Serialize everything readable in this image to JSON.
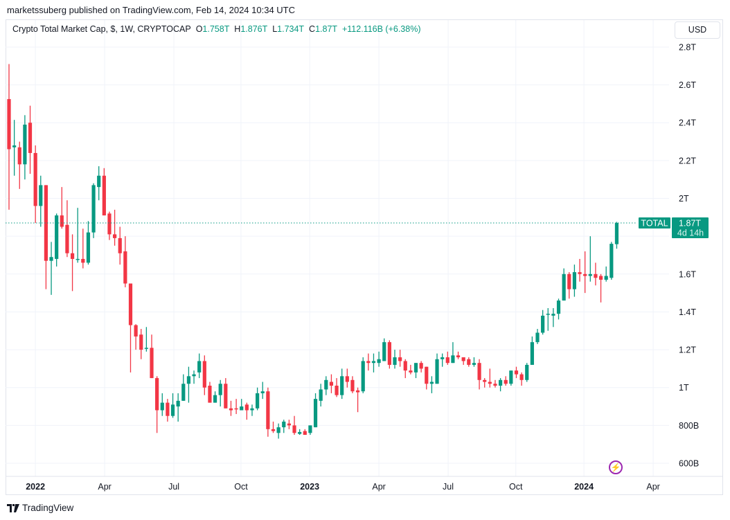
{
  "header": {
    "published": "marketssuberg published on TradingView.com, Feb 14, 2024 10:34 UTC"
  },
  "legend": {
    "symbol": "Crypto Total Market Cap, $, 1W, CRYPTOCAP",
    "o_label": "O",
    "o": "1.758T",
    "h_label": "H",
    "h": "1.876T",
    "l_label": "L",
    "l": "1.734T",
    "c_label": "C",
    "c": "1.87T",
    "change": "+112.116B (+6.38%)"
  },
  "currency_button": "USD",
  "footer": {
    "brand": "TradingView",
    "logo_icon": "tradingview-logo-icon"
  },
  "colors": {
    "up": "#089981",
    "down": "#f23645",
    "grid": "#f0f3fa",
    "text": "#131722",
    "event": "#9c27b0"
  },
  "events": [
    {
      "icon": "lightning-icon",
      "glyph": "⚡"
    }
  ],
  "chart_data": {
    "type": "candlestick",
    "title": "Crypto Total Market Cap, $, 1W, CRYPTOCAP",
    "unit": "T USD",
    "ylim": [
      0.5,
      2.95
    ],
    "grid": true,
    "y_ticks": [
      {
        "v": 0.6,
        "label": "600B"
      },
      {
        "v": 0.8,
        "label": "800B"
      },
      {
        "v": 1.0,
        "label": "1T"
      },
      {
        "v": 1.2,
        "label": "1.2T"
      },
      {
        "v": 1.4,
        "label": "1.4T"
      },
      {
        "v": 1.6,
        "label": "1.6T"
      },
      {
        "v": 1.8,
        "label": ""
      },
      {
        "v": 2.0,
        "label": "2T"
      },
      {
        "v": 2.2,
        "label": "2.2T"
      },
      {
        "v": 2.4,
        "label": "2.4T"
      },
      {
        "v": 2.6,
        "label": "2.6T"
      },
      {
        "v": 2.8,
        "label": "2.8T"
      }
    ],
    "x_ticks": [
      {
        "week": 5,
        "label": "2022",
        "bold": true
      },
      {
        "week": 18.1,
        "label": "Apr"
      },
      {
        "week": 31.2,
        "label": "Jul"
      },
      {
        "week": 43.9,
        "label": "Oct"
      },
      {
        "week": 56.9,
        "label": "2023",
        "bold": true
      },
      {
        "week": 70,
        "label": "Apr"
      },
      {
        "week": 83.1,
        "label": "Jul"
      },
      {
        "week": 95.9,
        "label": "Oct"
      },
      {
        "week": 108.8,
        "label": "2024",
        "bold": true
      },
      {
        "week": 121.9,
        "label": "Apr"
      }
    ],
    "last_price": {
      "series_label": "TOTAL",
      "value": 1.87,
      "value_label": "1.87T",
      "countdown": "4d 14h"
    },
    "ohlc": [
      [
        2.525,
        2.71,
        1.94,
        2.26
      ],
      [
        2.27,
        2.415,
        2.12,
        2.28
      ],
      [
        2.27,
        2.3,
        2.05,
        2.18
      ],
      [
        2.18,
        2.44,
        2.1,
        2.39
      ],
      [
        2.4,
        2.49,
        2.13,
        2.24
      ],
      [
        2.24,
        2.28,
        1.87,
        1.96
      ],
      [
        1.96,
        2.12,
        1.85,
        2.07
      ],
      [
        2.07,
        2.07,
        1.52,
        1.67
      ],
      [
        1.67,
        1.77,
        1.49,
        1.69
      ],
      [
        1.68,
        1.92,
        1.64,
        1.91
      ],
      [
        1.91,
        2.06,
        1.84,
        1.85
      ],
      [
        1.86,
        1.99,
        1.69,
        1.71
      ],
      [
        1.71,
        1.81,
        1.51,
        1.68
      ],
      [
        1.675,
        1.95,
        1.66,
        1.68
      ],
      [
        1.68,
        1.84,
        1.63,
        1.66
      ],
      [
        1.66,
        1.88,
        1.65,
        1.82
      ],
      [
        1.82,
        2.08,
        1.79,
        2.07
      ],
      [
        2.06,
        2.17,
        1.99,
        2.12
      ],
      [
        2.12,
        2.16,
        1.91,
        1.91
      ],
      [
        1.92,
        1.93,
        1.78,
        1.81
      ],
      [
        1.81,
        1.94,
        1.75,
        1.79
      ],
      [
        1.79,
        1.85,
        1.65,
        1.71
      ],
      [
        1.72,
        1.8,
        1.53,
        1.55
      ],
      [
        1.55,
        1.55,
        1.08,
        1.33
      ],
      [
        1.33,
        1.335,
        1.2,
        1.27
      ],
      [
        1.28,
        1.31,
        1.15,
        1.2
      ],
      [
        1.205,
        1.32,
        1.19,
        1.21
      ],
      [
        1.21,
        1.28,
        1.05,
        1.05
      ],
      [
        1.05,
        1.06,
        0.76,
        0.88
      ],
      [
        0.88,
        0.97,
        0.85,
        0.92
      ],
      [
        0.92,
        0.94,
        0.82,
        0.85
      ],
      [
        0.85,
        0.97,
        0.84,
        0.91
      ],
      [
        0.9,
        0.97,
        0.82,
        0.93
      ],
      [
        0.93,
        1.07,
        0.93,
        1.02
      ],
      [
        1.02,
        1.11,
        0.92,
        1.06
      ],
      [
        1.06,
        1.09,
        1.02,
        1.07
      ],
      [
        1.08,
        1.18,
        1.05,
        1.14
      ],
      [
        1.14,
        1.17,
        0.96,
        1.0
      ],
      [
        1.01,
        1.03,
        0.92,
        0.92
      ],
      [
        0.92,
        0.98,
        0.92,
        0.96
      ],
      [
        0.96,
        1.04,
        0.9,
        1.02
      ],
      [
        1.02,
        1.05,
        0.89,
        0.89
      ],
      [
        0.89,
        0.93,
        0.85,
        0.88
      ],
      [
        0.89,
        0.94,
        0.86,
        0.885
      ],
      [
        0.88,
        0.94,
        0.88,
        0.9
      ],
      [
        0.91,
        0.92,
        0.83,
        0.88
      ],
      [
        0.88,
        0.91,
        0.85,
        0.89
      ],
      [
        0.89,
        1.0,
        0.88,
        0.97
      ],
      [
        0.97,
        1.03,
        0.94,
        0.98
      ],
      [
        0.98,
        1.0,
        0.74,
        0.78
      ],
      [
        0.78,
        0.82,
        0.76,
        0.77
      ],
      [
        0.76,
        0.81,
        0.73,
        0.79
      ],
      [
        0.79,
        0.83,
        0.76,
        0.82
      ],
      [
        0.81,
        0.83,
        0.78,
        0.8
      ],
      [
        0.8,
        0.85,
        0.75,
        0.76
      ],
      [
        0.755,
        0.78,
        0.75,
        0.765
      ],
      [
        0.77,
        0.78,
        0.75,
        0.75
      ],
      [
        0.76,
        0.8,
        0.75,
        0.8
      ],
      [
        0.79,
        0.97,
        0.79,
        0.94
      ],
      [
        0.93,
        1.02,
        0.9,
        0.99
      ],
      [
        0.99,
        1.06,
        0.96,
        1.04
      ],
      [
        1.03,
        1.07,
        0.97,
        1.01
      ],
      [
        1.01,
        1.05,
        0.95,
        0.96
      ],
      [
        0.96,
        1.1,
        0.94,
        1.06
      ],
      [
        1.06,
        1.1,
        1.0,
        1.03
      ],
      [
        1.04,
        1.06,
        0.97,
        0.98
      ],
      [
        0.985,
        1.0,
        0.87,
        0.975
      ],
      [
        0.98,
        1.16,
        0.97,
        1.14
      ],
      [
        1.14,
        1.18,
        1.09,
        1.13
      ],
      [
        1.13,
        1.18,
        1.08,
        1.14
      ],
      [
        1.13,
        1.19,
        1.11,
        1.15
      ],
      [
        1.14,
        1.26,
        1.14,
        1.24
      ],
      [
        1.24,
        1.25,
        1.1,
        1.12
      ],
      [
        1.12,
        1.2,
        1.1,
        1.16
      ],
      [
        1.16,
        1.2,
        1.11,
        1.14
      ],
      [
        1.14,
        1.15,
        1.05,
        1.09
      ],
      [
        1.09,
        1.12,
        1.07,
        1.08
      ],
      [
        1.08,
        1.13,
        1.05,
        1.13
      ],
      [
        1.13,
        1.14,
        1.08,
        1.1
      ],
      [
        1.11,
        1.11,
        0.99,
        1.02
      ],
      [
        1.02,
        1.06,
        0.97,
        1.03
      ],
      [
        1.02,
        1.18,
        1.02,
        1.15
      ],
      [
        1.15,
        1.18,
        1.11,
        1.16
      ],
      [
        1.16,
        1.19,
        1.12,
        1.13
      ],
      [
        1.13,
        1.24,
        1.13,
        1.17
      ],
      [
        1.17,
        1.19,
        1.15,
        1.16
      ],
      [
        1.16,
        1.16,
        1.12,
        1.14
      ],
      [
        1.15,
        1.16,
        1.11,
        1.12
      ],
      [
        1.12,
        1.16,
        1.11,
        1.13
      ],
      [
        1.13,
        1.15,
        0.99,
        1.04
      ],
      [
        1.04,
        1.05,
        1.0,
        1.03
      ],
      [
        1.03,
        1.1,
        1.0,
        1.02
      ],
      [
        1.02,
        1.04,
        1.0,
        1.01
      ],
      [
        1.01,
        1.05,
        0.98,
        1.04
      ],
      [
        1.04,
        1.06,
        1.01,
        1.02
      ],
      [
        1.02,
        1.09,
        1.01,
        1.09
      ],
      [
        1.09,
        1.11,
        1.05,
        1.07
      ],
      [
        1.07,
        1.08,
        1.01,
        1.04
      ],
      [
        1.04,
        1.13,
        1.03,
        1.12
      ],
      [
        1.12,
        1.27,
        1.12,
        1.24
      ],
      [
        1.24,
        1.31,
        1.23,
        1.29
      ],
      [
        1.29,
        1.41,
        1.28,
        1.38
      ],
      [
        1.385,
        1.42,
        1.3,
        1.39
      ],
      [
        1.38,
        1.42,
        1.32,
        1.39
      ],
      [
        1.39,
        1.47,
        1.36,
        1.46
      ],
      [
        1.46,
        1.63,
        1.46,
        1.6
      ],
      [
        1.6,
        1.61,
        1.47,
        1.52
      ],
      [
        1.52,
        1.65,
        1.48,
        1.61
      ],
      [
        1.61,
        1.68,
        1.56,
        1.6
      ],
      [
        1.6,
        1.72,
        1.5,
        1.59
      ],
      [
        1.59,
        1.8,
        1.56,
        1.6
      ],
      [
        1.6,
        1.66,
        1.54,
        1.58
      ],
      [
        1.59,
        1.6,
        1.45,
        1.57
      ],
      [
        1.57,
        1.64,
        1.56,
        1.59
      ],
      [
        1.58,
        1.77,
        1.57,
        1.76
      ],
      [
        1.758,
        1.876,
        1.734,
        1.87
      ]
    ]
  }
}
